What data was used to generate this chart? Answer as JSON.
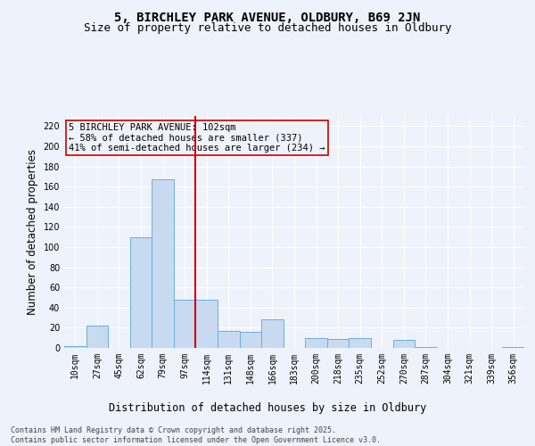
{
  "title_line1": "5, BIRCHLEY PARK AVENUE, OLDBURY, B69 2JN",
  "title_line2": "Size of property relative to detached houses in Oldbury",
  "xlabel": "Distribution of detached houses by size in Oldbury",
  "ylabel": "Number of detached properties",
  "categories": [
    "10sqm",
    "27sqm",
    "45sqm",
    "62sqm",
    "79sqm",
    "97sqm",
    "114sqm",
    "131sqm",
    "148sqm",
    "166sqm",
    "183sqm",
    "200sqm",
    "218sqm",
    "235sqm",
    "252sqm",
    "270sqm",
    "287sqm",
    "304sqm",
    "321sqm",
    "339sqm",
    "356sqm"
  ],
  "values": [
    2,
    22,
    0,
    110,
    167,
    48,
    48,
    17,
    16,
    28,
    0,
    10,
    9,
    10,
    0,
    8,
    1,
    0,
    0,
    0,
    1
  ],
  "bar_color": "#c8daf0",
  "bar_edge_color": "#6aaee0",
  "vline_x": 5.5,
  "vline_color": "#cc0000",
  "annotation_text": "5 BIRCHLEY PARK AVENUE: 102sqm\n← 58% of detached houses are smaller (337)\n41% of semi-detached houses are larger (234) →",
  "annotation_box_color": "#cc0000",
  "annotation_text_color": "#000000",
  "ylim": [
    0,
    230
  ],
  "yticks": [
    0,
    20,
    40,
    60,
    80,
    100,
    120,
    140,
    160,
    180,
    200,
    220
  ],
  "background_color": "#eef2fa",
  "grid_color": "#ffffff",
  "footer_text": "Contains HM Land Registry data © Crown copyright and database right 2025.\nContains public sector information licensed under the Open Government Licence v3.0.",
  "title_fontsize": 10,
  "subtitle_fontsize": 9,
  "axis_label_fontsize": 8.5,
  "tick_fontsize": 7,
  "annotation_fontsize": 7.5,
  "footer_fontsize": 6
}
